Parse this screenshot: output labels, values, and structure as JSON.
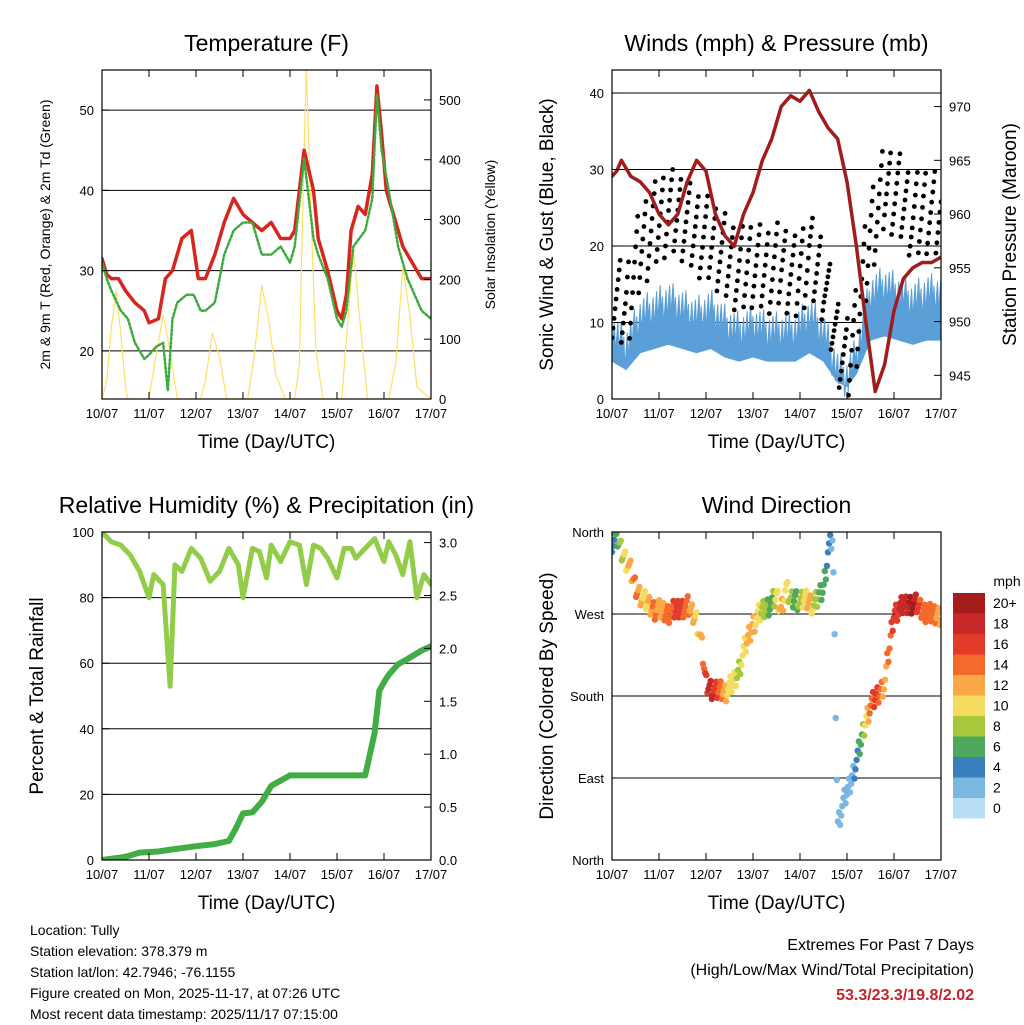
{
  "colors": {
    "temp": "#d7261e",
    "dew": "#3caa3c",
    "solar": "#ffe066",
    "gust": "#000000",
    "wind": "#5a9fd8",
    "pressure": "#a11d1d",
    "rh": "#92cd4a",
    "precip": "#43ad45",
    "extreme": "#c3252a"
  },
  "chart_data": [
    {
      "id": "temperature",
      "type": "line",
      "title": "Temperature (F)",
      "xlabel": "Time (Day/UTC)",
      "ylabel": "2m & 9m T (Red, Orange) & 2m Td (Green)",
      "y2label": "Solar Insolation (Yellow)",
      "x_ticks": [
        "10/07",
        "11/07",
        "12/07",
        "13/07",
        "14/07",
        "15/07",
        "16/07",
        "17/07"
      ],
      "ylim": [
        14,
        55
      ],
      "yticks": [
        20,
        30,
        40,
        50
      ],
      "y2lim": [
        0,
        550
      ],
      "y2ticks": [
        0,
        100,
        200,
        300,
        400,
        500
      ],
      "series": [
        {
          "name": "2m T",
          "color": "#d7261e",
          "x": [
            0,
            0.1,
            0.2,
            0.35,
            0.5,
            0.7,
            0.9,
            1.0,
            1.2,
            1.35,
            1.5,
            1.7,
            1.9,
            2.05,
            2.2,
            2.4,
            2.6,
            2.8,
            3.0,
            3.2,
            3.4,
            3.6,
            3.8,
            4.0,
            4.1,
            4.3,
            4.5,
            4.6,
            4.8,
            5.0,
            5.1,
            5.2,
            5.3,
            5.45,
            5.6,
            5.75,
            5.85,
            5.95,
            6.05,
            6.2,
            6.4,
            6.6,
            6.8,
            7.0
          ],
          "y": [
            31.5,
            29.5,
            29,
            29,
            27.5,
            26,
            25,
            23.5,
            24,
            29,
            30,
            34,
            35,
            29,
            29,
            32,
            36,
            39,
            37,
            36,
            35,
            36,
            34,
            34,
            35,
            45,
            40,
            34,
            30,
            25,
            24,
            27,
            35,
            38,
            37,
            42,
            53,
            47,
            40,
            37,
            33,
            31,
            29,
            29
          ]
        },
        {
          "name": "2m Td",
          "color": "#3caa3c",
          "x": [
            0,
            0.1,
            0.2,
            0.4,
            0.55,
            0.7,
            0.9,
            1.0,
            1.15,
            1.3,
            1.4,
            1.5,
            1.6,
            1.8,
            1.95,
            2.1,
            2.2,
            2.4,
            2.6,
            2.8,
            3.0,
            3.2,
            3.4,
            3.6,
            3.8,
            4.0,
            4.1,
            4.3,
            4.5,
            4.6,
            4.8,
            5.0,
            5.1,
            5.2,
            5.35,
            5.6,
            5.75,
            5.85,
            5.95,
            6.1,
            6.3,
            6.5,
            6.8,
            7.0
          ],
          "y": [
            31,
            29,
            27.5,
            25,
            24,
            21,
            19,
            19.5,
            20.5,
            21,
            15,
            24,
            26,
            27,
            27,
            25,
            25,
            26,
            32,
            35,
            36,
            36,
            32,
            32,
            33,
            31,
            33,
            44,
            34,
            32,
            29,
            24,
            23,
            25,
            33,
            35,
            39,
            52,
            45,
            40,
            33,
            29,
            25,
            24
          ]
        },
        {
          "name": "Solar Insolation",
          "color": "#ffe066",
          "axis": "y2",
          "x": [
            0,
            0.1,
            0.2,
            0.3,
            0.4,
            0.5,
            0.55,
            1.0,
            1.1,
            1.3,
            1.45,
            1.6,
            2.1,
            2.2,
            2.35,
            2.5,
            2.65,
            3.1,
            3.25,
            3.4,
            3.55,
            3.7,
            3.9,
            4.1,
            4.2,
            4.3,
            4.35,
            4.45,
            4.55,
            4.7,
            5.1,
            5.2,
            5.35,
            5.5,
            5.65,
            6.1,
            6.25,
            6.4,
            6.55,
            6.7,
            7.0
          ],
          "y": [
            0,
            30,
            120,
            180,
            110,
            20,
            0,
            0,
            50,
            140,
            80,
            0,
            0,
            30,
            110,
            70,
            0,
            0,
            80,
            190,
            130,
            40,
            0,
            0,
            60,
            420,
            550,
            300,
            80,
            0,
            0,
            100,
            250,
            120,
            0,
            0,
            60,
            220,
            140,
            20,
            0
          ]
        }
      ]
    },
    {
      "id": "winds",
      "type": "scatter",
      "title": "Winds (mph) & Pressure (mb)",
      "xlabel": "Time (Day/UTC)",
      "ylabel": "Sonic Wind & Gust (Blue, Black)",
      "y2label": "Station Pressure (Maroon)",
      "x_ticks": [
        "10/07",
        "11/07",
        "12/07",
        "13/07",
        "14/07",
        "15/07",
        "16/07",
        "17/07"
      ],
      "ylim": [
        0,
        43
      ],
      "yticks": [
        0,
        10,
        20,
        30,
        40
      ],
      "y2lim": [
        942.8,
        973.4
      ],
      "y2ticks": [
        945,
        950,
        955,
        960,
        965,
        970
      ],
      "series": [
        {
          "name": "Sonic Wind",
          "color": "#5a9fd8",
          "x": [
            0,
            0.3,
            0.6,
            0.9,
            1.2,
            1.5,
            1.8,
            2.1,
            2.4,
            2.7,
            3.0,
            3.3,
            3.6,
            3.9,
            4.2,
            4.5,
            4.8,
            5.0,
            5.2,
            5.5,
            5.8,
            6.1,
            6.4,
            6.7,
            7.0
          ],
          "y": [
            9,
            7,
            11,
            12,
            13,
            12,
            11,
            12,
            10,
            9,
            10,
            9,
            9,
            9,
            11,
            9,
            4,
            3,
            6,
            14,
            15,
            14,
            13,
            14,
            14
          ]
        },
        {
          "name": "Gust",
          "color": "#000000",
          "x": [
            0,
            0.3,
            0.6,
            0.9,
            1.2,
            1.5,
            1.8,
            2.1,
            2.4,
            2.7,
            3.0,
            3.3,
            3.6,
            3.9,
            4.2,
            4.5,
            4.8,
            5.0,
            5.2,
            5.5,
            5.8,
            6.1,
            6.4,
            6.7,
            7.0
          ],
          "y": [
            14,
            12,
            20,
            23,
            25,
            24,
            22,
            21,
            19,
            17,
            18,
            17,
            18,
            16,
            19,
            16,
            8,
            5,
            10,
            22,
            28,
            27,
            24,
            25,
            24
          ]
        },
        {
          "name": "Station Pressure",
          "color": "#a11d1d",
          "axis": "y2",
          "x": [
            0,
            0.1,
            0.2,
            0.4,
            0.6,
            0.8,
            1.0,
            1.2,
            1.4,
            1.6,
            1.8,
            2.0,
            2.2,
            2.4,
            2.6,
            2.8,
            3.0,
            3.2,
            3.4,
            3.6,
            3.8,
            4.0,
            4.2,
            4.4,
            4.6,
            4.8,
            5.0,
            5.2,
            5.4,
            5.6,
            5.8,
            6.0,
            6.2,
            6.4,
            6.6,
            6.8,
            7.0
          ],
          "y": [
            963.5,
            964,
            965,
            963.5,
            963,
            962,
            960,
            959,
            960,
            963,
            965,
            964,
            960,
            958,
            957,
            960,
            962,
            965,
            967,
            970,
            971,
            970.5,
            971.5,
            969.5,
            968,
            967,
            963,
            957,
            950,
            943.5,
            946,
            951,
            954,
            955,
            955.5,
            955.5,
            956
          ]
        }
      ]
    },
    {
      "id": "humidity",
      "type": "line",
      "title": "Relative Humidity (%) & Precipitation (in)",
      "xlabel": "Time (Day/UTC)",
      "ylabel": "Percent & Total Rainfall",
      "x_ticks": [
        "10/07",
        "11/07",
        "12/07",
        "13/07",
        "14/07",
        "15/07",
        "16/07",
        "17/07"
      ],
      "ylim": [
        0,
        100
      ],
      "yticks": [
        0,
        20,
        40,
        60,
        80,
        100
      ],
      "y2lim": [
        0,
        3.1
      ],
      "y2ticks": [
        "0.0",
        "0.5",
        "1.0",
        "1.5",
        "2.0",
        "2.5",
        "3.0"
      ],
      "series": [
        {
          "name": "Relative Humidity",
          "color": "#92cd4a",
          "x": [
            0,
            0.2,
            0.4,
            0.6,
            0.8,
            1.0,
            1.1,
            1.3,
            1.45,
            1.55,
            1.7,
            1.9,
            2.1,
            2.3,
            2.5,
            2.7,
            2.9,
            3.0,
            3.2,
            3.35,
            3.5,
            3.6,
            3.8,
            4.0,
            4.2,
            4.35,
            4.5,
            4.65,
            4.8,
            5.0,
            5.15,
            5.3,
            5.4,
            5.6,
            5.8,
            6.0,
            6.1,
            6.25,
            6.4,
            6.55,
            6.7,
            6.85,
            7.0
          ],
          "y": [
            100,
            97,
            96,
            93,
            88,
            80,
            87,
            84,
            53,
            90,
            88,
            95,
            92,
            85,
            88,
            95,
            90,
            80,
            95,
            94,
            86,
            96,
            91,
            97,
            96,
            84,
            96,
            95,
            92,
            86,
            95,
            95,
            92,
            95,
            98,
            91,
            97,
            93,
            87,
            97,
            80,
            87,
            84
          ]
        },
        {
          "name": "Total Precipitation",
          "color": "#43ad45",
          "axis": "y2",
          "x": [
            0,
            0.5,
            0.8,
            1.2,
            1.5,
            2.0,
            2.4,
            2.7,
            2.85,
            3.0,
            3.2,
            3.4,
            3.6,
            4.0,
            4.5,
            5.0,
            5.5,
            5.6,
            5.7,
            5.8,
            5.9,
            6.0,
            6.1,
            6.3,
            6.5,
            6.8,
            7.0
          ],
          "y": [
            0,
            0.03,
            0.07,
            0.08,
            0.1,
            0.13,
            0.15,
            0.18,
            0.3,
            0.44,
            0.45,
            0.55,
            0.7,
            0.8,
            0.8,
            0.8,
            0.8,
            0.8,
            1.0,
            1.2,
            1.6,
            1.68,
            1.75,
            1.85,
            1.9,
            1.98,
            2.02
          ]
        }
      ]
    },
    {
      "id": "wind_direction",
      "type": "scatter",
      "title": "Wind Direction",
      "xlabel": "Time (Day/UTC)",
      "ylabel": "Direction (Colored By Speed)",
      "x_ticks": [
        "10/07",
        "11/07",
        "12/07",
        "13/07",
        "14/07",
        "15/07",
        "16/07",
        "17/07"
      ],
      "ylim": [
        0,
        360
      ],
      "yticks": [
        {
          "v": 0,
          "label": "North"
        },
        {
          "v": 90,
          "label": "East"
        },
        {
          "v": 180,
          "label": "South"
        },
        {
          "v": 270,
          "label": "West"
        },
        {
          "v": 360,
          "label": "North"
        }
      ],
      "legend": {
        "title": "mph",
        "labels": [
          "20+",
          "18",
          "16",
          "14",
          "12",
          "10",
          "8",
          "6",
          "4",
          "2",
          "0"
        ],
        "colors": [
          "#a51c1c",
          "#c92828",
          "#e23b2b",
          "#f36a2b",
          "#fba946",
          "#f4dc5e",
          "#a8c73c",
          "#4ea85c",
          "#3a7fbd",
          "#7cb6e2",
          "#b8def5"
        ]
      },
      "x": [
        0,
        0.1,
        0.2,
        0.3,
        0.4,
        0.5,
        0.6,
        0.7,
        0.8,
        0.9,
        1.0,
        1.2,
        1.4,
        1.6,
        1.8,
        1.9,
        2.0,
        2.1,
        2.2,
        2.3,
        2.4,
        2.5,
        2.6,
        2.7,
        2.8,
        2.9,
        3.0,
        3.1,
        3.2,
        3.4,
        3.5,
        3.6,
        3.7,
        3.8,
        3.9,
        4.0,
        4.1,
        4.2,
        4.3,
        4.5,
        4.6,
        4.7,
        4.8,
        4.9,
        5.0,
        5.1,
        5.2,
        5.3,
        5.4,
        5.5,
        5.6,
        5.7,
        5.8,
        6.0,
        6.2,
        6.4,
        6.5,
        6.6,
        6.8,
        7.0
      ],
      "y": [
        350,
        355,
        340,
        330,
        318,
        300,
        292,
        285,
        280,
        276,
        275,
        272,
        276,
        280,
        265,
        240,
        195,
        190,
        185,
        188,
        185,
        190,
        196,
        210,
        230,
        245,
        260,
        268,
        275,
        283,
        290,
        276,
        300,
        285,
        290,
        282,
        288,
        285,
        280,
        300,
        340,
        355,
        40,
        60,
        75,
        90,
        110,
        130,
        155,
        170,
        178,
        185,
        195,
        272,
        280,
        283,
        280,
        275,
        270,
        270
      ],
      "speed": [
        3,
        6,
        8,
        10,
        12,
        14,
        12,
        10,
        12,
        14,
        12,
        14,
        16,
        14,
        10,
        12,
        16,
        18,
        16,
        14,
        12,
        10,
        10,
        8,
        10,
        12,
        12,
        10,
        8,
        6,
        10,
        12,
        10,
        8,
        6,
        8,
        10,
        12,
        8,
        6,
        4,
        2,
        2,
        2,
        2,
        2,
        4,
        6,
        10,
        14,
        16,
        14,
        12,
        16,
        18,
        20,
        16,
        14,
        14,
        12
      ]
    }
  ],
  "info": {
    "location": "Location: Tully",
    "elevation": "Station elevation: 378.379 m",
    "latlon": "Station lat/lon: 42.7946; -76.1155",
    "created": "Figure created on Mon, 2025-11-17, at 07:26 UTC",
    "recent": "Most recent data timestamp: 2025/11/17 07:15:00"
  },
  "extremes": {
    "title": "Extremes For Past 7 Days",
    "subtitle": "(High/Low/Max Wind/Total Precipitation)",
    "values": "53.3/23.3/19.8/2.02"
  }
}
